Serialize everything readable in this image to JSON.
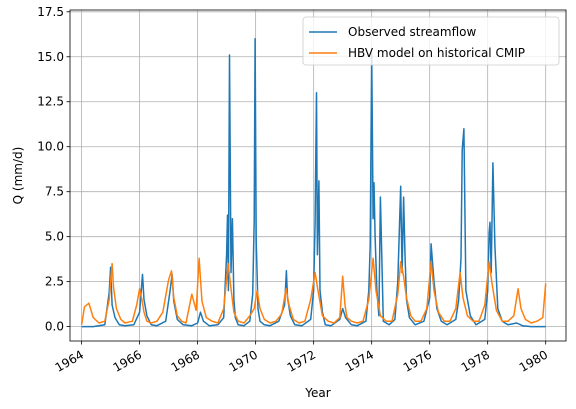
{
  "chart_data": {
    "type": "line",
    "xlabel": "Year",
    "ylabel": "Q (mm/d)",
    "xlim": [
      1963.6,
      1980.7
    ],
    "ylim": [
      -0.8,
      17.6
    ],
    "x_ticks": [
      1964,
      1966,
      1968,
      1970,
      1972,
      1974,
      1976,
      1978,
      1980
    ],
    "x_tick_labels": [
      "1964",
      "1966",
      "1968",
      "1970",
      "1972",
      "1974",
      "1976",
      "1978",
      "1980"
    ],
    "y_ticks": [
      0,
      2.5,
      5,
      7.5,
      10,
      12.5,
      15,
      17.5
    ],
    "y_tick_labels": [
      "0.0",
      "2.5",
      "5.0",
      "7.5",
      "10.0",
      "12.5",
      "15.0",
      "17.5"
    ],
    "grid": true,
    "legend_position": "top-right",
    "series": [
      {
        "name": "Observed streamflow",
        "color": "#1f77b4",
        "x": [
          1964.0,
          1964.4,
          1964.8,
          1964.95,
          1965.0,
          1965.05,
          1965.15,
          1965.3,
          1965.5,
          1965.8,
          1966.0,
          1966.1,
          1966.15,
          1966.25,
          1966.4,
          1966.6,
          1966.9,
          1967.05,
          1967.12,
          1967.18,
          1967.3,
          1967.5,
          1967.8,
          1968.0,
          1968.1,
          1968.2,
          1968.4,
          1968.7,
          1968.9,
          1969.0,
          1969.03,
          1969.06,
          1969.1,
          1969.15,
          1969.2,
          1969.25,
          1969.3,
          1969.4,
          1969.6,
          1969.8,
          1969.9,
          1969.95,
          1969.98,
          1970.02,
          1970.08,
          1970.15,
          1970.3,
          1970.5,
          1970.8,
          1971.0,
          1971.06,
          1971.1,
          1971.2,
          1971.35,
          1971.6,
          1971.9,
          1972.0,
          1972.05,
          1972.1,
          1972.13,
          1972.18,
          1972.22,
          1972.3,
          1972.4,
          1972.6,
          1972.9,
          1973.0,
          1973.1,
          1973.3,
          1973.5,
          1973.8,
          1973.9,
          1973.95,
          1974.0,
          1974.05,
          1974.08,
          1974.12,
          1974.18,
          1974.25,
          1974.3,
          1974.4,
          1974.6,
          1974.8,
          1974.9,
          1974.95,
          1975.0,
          1975.05,
          1975.1,
          1975.15,
          1975.2,
          1975.3,
          1975.5,
          1975.8,
          1976.0,
          1976.05,
          1976.15,
          1976.25,
          1976.4,
          1976.6,
          1976.9,
          1977.0,
          1977.08,
          1977.12,
          1977.18,
          1977.25,
          1977.4,
          1977.6,
          1977.9,
          1978.0,
          1978.05,
          1978.08,
          1978.12,
          1978.18,
          1978.25,
          1978.35,
          1978.5,
          1978.7,
          1979.0,
          1979.2,
          1979.5,
          1979.8,
          1980.0
        ],
        "y": [
          0.0,
          0.0,
          0.1,
          1.9,
          3.3,
          1.2,
          0.5,
          0.1,
          0.05,
          0.1,
          0.8,
          2.9,
          1.5,
          0.6,
          0.1,
          0.05,
          0.3,
          2.0,
          2.9,
          1.4,
          0.4,
          0.1,
          0.05,
          0.2,
          0.8,
          0.3,
          0.05,
          0.1,
          0.5,
          4.0,
          6.2,
          2.0,
          15.1,
          3.0,
          6.0,
          1.5,
          0.5,
          0.1,
          0.05,
          0.3,
          1.8,
          5.9,
          16.0,
          4.8,
          1.0,
          0.3,
          0.1,
          0.05,
          0.3,
          1.2,
          3.1,
          1.6,
          0.6,
          0.1,
          0.05,
          0.4,
          2.0,
          5.8,
          13.0,
          4.0,
          8.1,
          2.0,
          0.8,
          0.1,
          0.05,
          0.4,
          1.0,
          0.5,
          0.1,
          0.05,
          0.3,
          2.0,
          4.5,
          15.2,
          6.0,
          8.0,
          5.0,
          2.0,
          0.6,
          7.2,
          0.3,
          0.1,
          0.4,
          2.5,
          5.1,
          7.8,
          3.0,
          7.2,
          4.0,
          1.5,
          0.5,
          0.1,
          0.3,
          1.6,
          4.6,
          2.5,
          1.0,
          0.3,
          0.1,
          0.4,
          1.5,
          3.8,
          9.8,
          11.0,
          2.0,
          0.6,
          0.1,
          0.4,
          2.0,
          5.2,
          5.8,
          3.0,
          9.1,
          4.5,
          1.0,
          0.3,
          0.1,
          0.2,
          0.05,
          0.0,
          0.0,
          0.0
        ]
      },
      {
        "name": "HBV model on historical CMIP",
        "color": "#ff7f0e",
        "x": [
          1964.0,
          1964.1,
          1964.25,
          1964.4,
          1964.6,
          1964.8,
          1964.95,
          1965.05,
          1965.1,
          1965.2,
          1965.35,
          1965.5,
          1965.75,
          1965.9,
          1966.0,
          1966.08,
          1966.15,
          1966.25,
          1966.4,
          1966.6,
          1966.8,
          1967.0,
          1967.1,
          1967.18,
          1967.3,
          1967.45,
          1967.6,
          1967.8,
          1967.95,
          1968.05,
          1968.15,
          1968.3,
          1968.5,
          1968.7,
          1968.9,
          1969.05,
          1969.15,
          1969.25,
          1969.4,
          1969.6,
          1969.8,
          1969.95,
          1970.05,
          1970.15,
          1970.3,
          1970.5,
          1970.7,
          1970.9,
          1971.05,
          1971.15,
          1971.3,
          1971.5,
          1971.7,
          1971.9,
          1972.05,
          1972.15,
          1972.3,
          1972.5,
          1972.7,
          1972.9,
          1973.0,
          1973.08,
          1973.15,
          1973.3,
          1973.5,
          1973.7,
          1973.9,
          1974.05,
          1974.15,
          1974.3,
          1974.5,
          1974.7,
          1974.9,
          1975.0,
          1975.1,
          1975.2,
          1975.35,
          1975.5,
          1975.7,
          1975.9,
          1976.05,
          1976.15,
          1976.3,
          1976.5,
          1976.7,
          1976.9,
          1977.05,
          1977.15,
          1977.3,
          1977.5,
          1977.7,
          1977.9,
          1978.05,
          1978.15,
          1978.3,
          1978.5,
          1978.7,
          1978.9,
          1979.05,
          1979.15,
          1979.3,
          1979.5,
          1979.7,
          1979.9,
          1980.0
        ],
        "y": [
          0.1,
          1.1,
          1.3,
          0.5,
          0.2,
          0.3,
          1.5,
          3.5,
          2.2,
          1.0,
          0.4,
          0.2,
          0.3,
          1.2,
          2.1,
          1.5,
          0.8,
          0.3,
          0.2,
          0.3,
          0.8,
          2.6,
          3.1,
          1.6,
          0.6,
          0.3,
          0.2,
          1.8,
          0.9,
          3.8,
          1.4,
          0.5,
          0.3,
          0.2,
          1.0,
          3.5,
          2.1,
          0.8,
          0.3,
          0.2,
          0.6,
          1.0,
          2.0,
          1.0,
          0.4,
          0.2,
          0.3,
          0.7,
          2.1,
          1.2,
          0.4,
          0.2,
          0.3,
          1.5,
          3.0,
          2.0,
          0.6,
          0.3,
          0.2,
          0.5,
          2.8,
          1.2,
          0.5,
          0.3,
          0.2,
          0.3,
          1.5,
          3.8,
          2.0,
          0.6,
          0.3,
          0.3,
          1.8,
          3.6,
          2.8,
          1.6,
          0.6,
          0.3,
          0.3,
          1.0,
          3.6,
          2.0,
          0.8,
          0.3,
          0.3,
          1.0,
          3.0,
          1.6,
          0.6,
          0.3,
          0.3,
          1.2,
          3.6,
          2.4,
          0.9,
          0.3,
          0.3,
          0.6,
          2.1,
          1.0,
          0.4,
          0.2,
          0.3,
          0.5,
          2.4
        ]
      }
    ]
  }
}
